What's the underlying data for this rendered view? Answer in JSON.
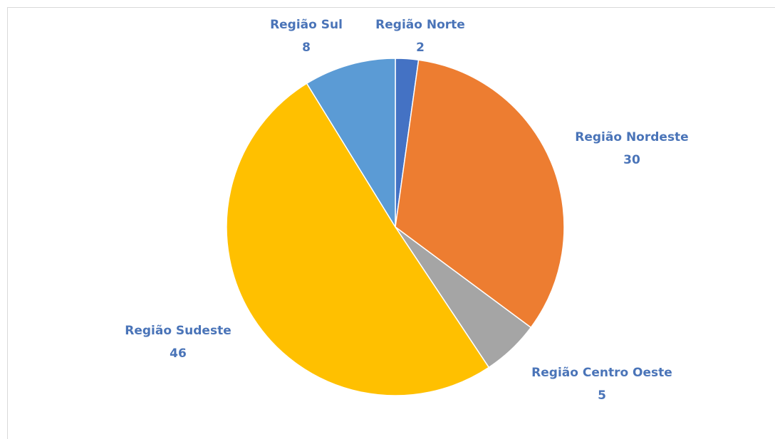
{
  "chart_data": {
    "type": "pie",
    "categories": [
      "Região Norte",
      "Região Nordeste",
      "Região Centro Oeste",
      "Região Sudeste",
      "Região Sul"
    ],
    "values": [
      2,
      30,
      5,
      46,
      8
    ],
    "colors": [
      "#4472c4",
      "#ed7d31",
      "#a5a5a5",
      "#ffc000",
      "#5b9bd5"
    ]
  }
}
